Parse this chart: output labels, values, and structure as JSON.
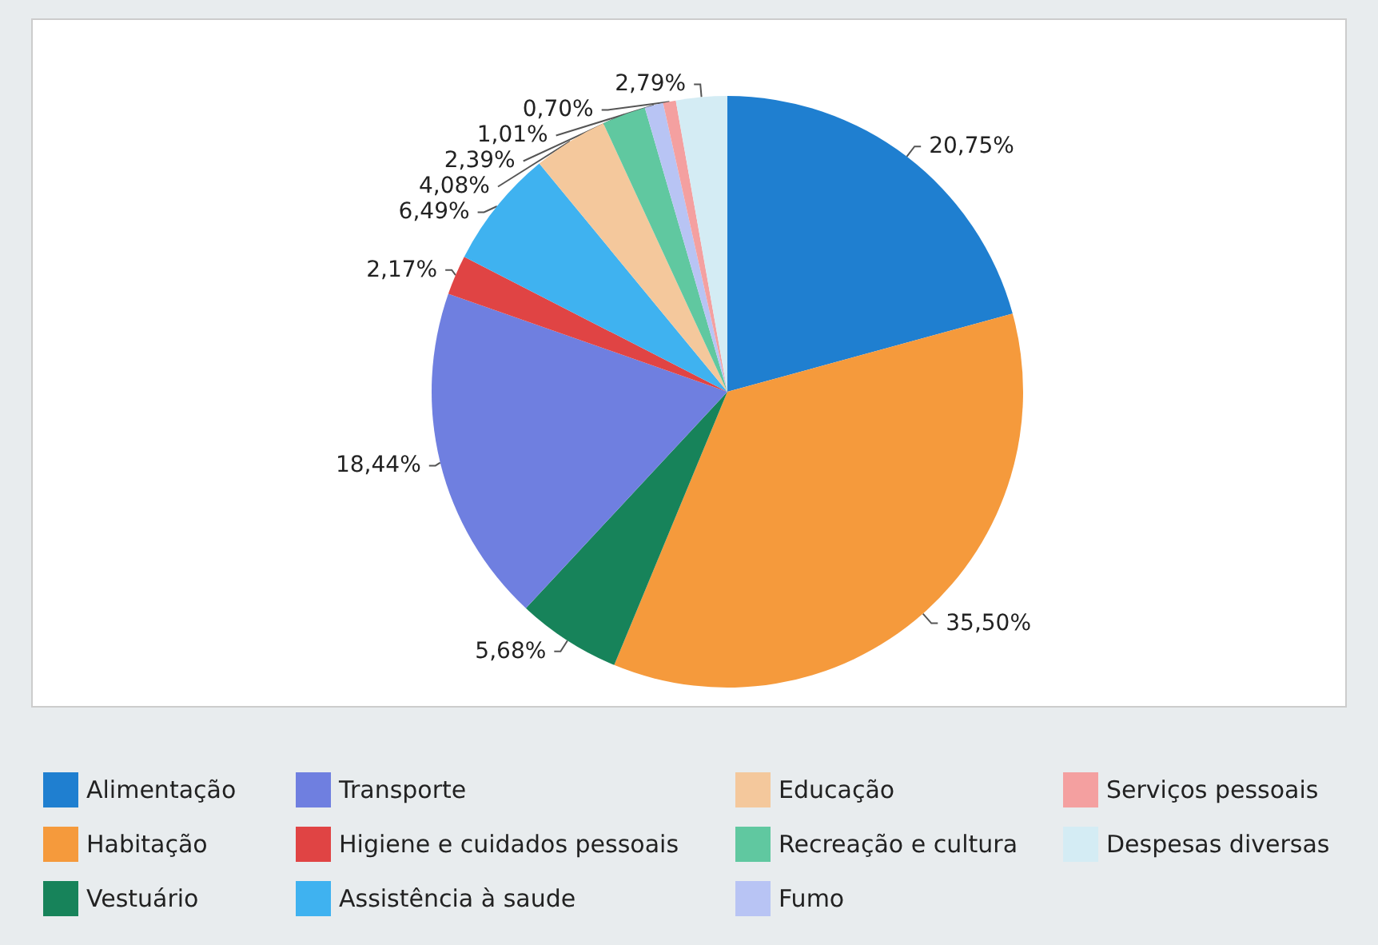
{
  "chart_data": {
    "type": "pie",
    "categories": [
      "Alimentação",
      "Habitação",
      "Vestuário",
      "Transporte",
      "Higiene e cuidados pessoais",
      "Assistência à saude",
      "Educação",
      "Recreação e cultura",
      "Fumo",
      "Serviços pessoais",
      "Despesas diversas"
    ],
    "values": [
      20.75,
      35.5,
      5.68,
      18.44,
      2.17,
      6.49,
      4.08,
      2.39,
      1.01,
      0.7,
      2.79
    ],
    "value_labels": [
      "20,75%",
      "35,50%",
      "5,68%",
      "18,44%",
      "2,17%",
      "6,49%",
      "4,08%",
      "2,39%",
      "1,01%",
      "0,70%",
      "2,79%"
    ],
    "colors": [
      "#1f7fd0",
      "#f59a3c",
      "#17835a",
      "#6f7fe0",
      "#e04444",
      "#3fb2f0",
      "#f4c89c",
      "#60c8a0",
      "#b8c4f4",
      "#f4a0a0",
      "#d4ecf4"
    ],
    "legend": "bottom"
  }
}
